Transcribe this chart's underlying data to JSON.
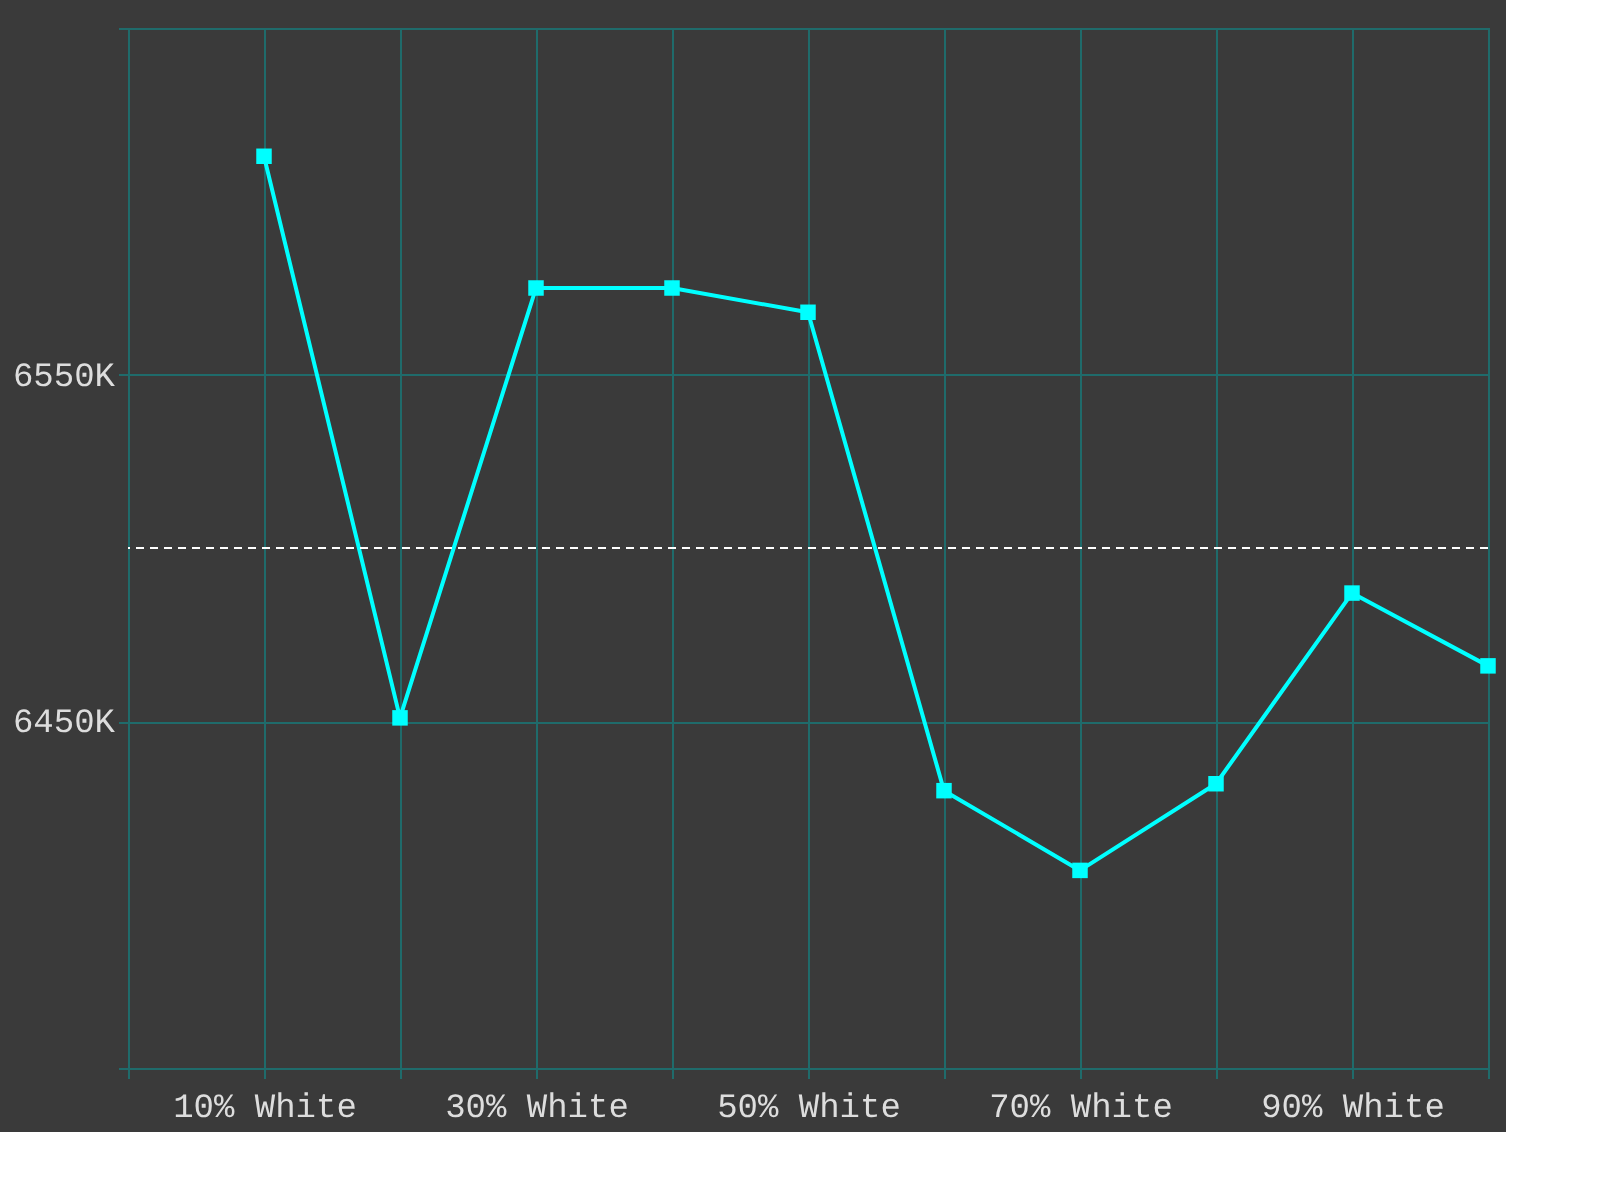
{
  "chart_data": {
    "type": "line",
    "x": [
      10,
      20,
      30,
      40,
      50,
      60,
      70,
      80,
      90,
      100
    ],
    "series": [
      {
        "color": "#00ffff",
        "values": [
          6613,
          6451,
          6575,
          6575,
          6568,
          6430,
          6407,
          6432,
          6487,
          6466
        ]
      }
    ],
    "xlim": [
      0,
      100
    ],
    "xticks": [
      {
        "value": 0,
        "label": null
      },
      {
        "value": 10,
        "label": "10% White"
      },
      {
        "value": 20,
        "label": null
      },
      {
        "value": 30,
        "label": "30% White"
      },
      {
        "value": 40,
        "label": null
      },
      {
        "value": 50,
        "label": "50% White"
      },
      {
        "value": 60,
        "label": null
      },
      {
        "value": 70,
        "label": "70% White"
      },
      {
        "value": 80,
        "label": null
      },
      {
        "value": 90,
        "label": "90% White"
      },
      {
        "value": 100,
        "label": null
      }
    ],
    "ylim": [
      6350,
      6650
    ],
    "yticks": [
      {
        "value": 6350,
        "label": null
      },
      {
        "value": 6450,
        "label": "6450K"
      },
      {
        "value": 6550,
        "label": "6550K"
      },
      {
        "value": 6650,
        "label": null
      }
    ],
    "ref_lines": [
      {
        "axis": "y",
        "value": 6500,
        "label": null,
        "color": "#ffffff",
        "line_style": "dashed"
      }
    ],
    "grid": true,
    "marker": "square",
    "line_style": "solid"
  }
}
